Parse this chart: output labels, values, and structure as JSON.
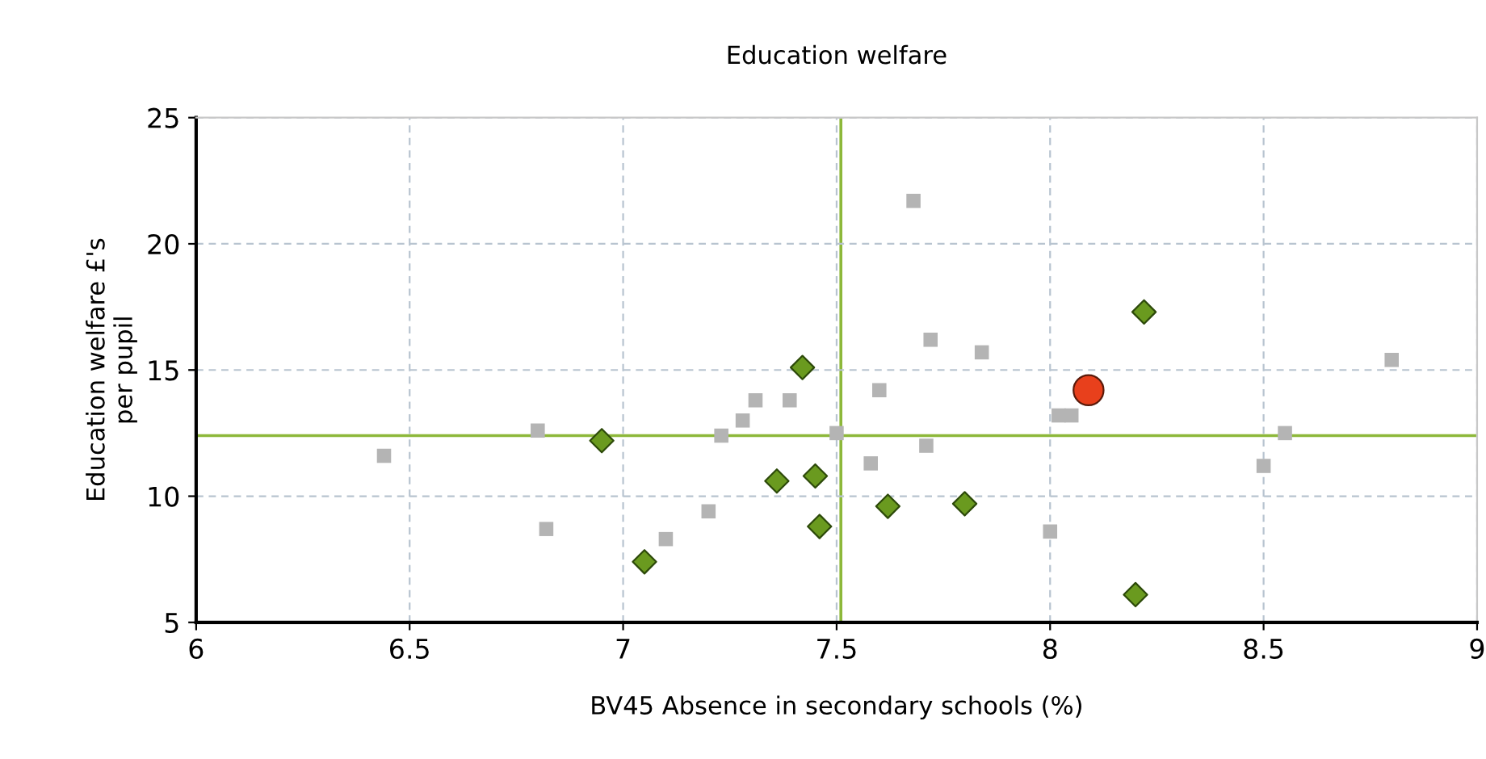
{
  "chart_data": {
    "type": "scatter",
    "title": "Education welfare",
    "xlabel": "BV45 Absence in secondary schools (%)",
    "ylabel": "Education welfare £'s\nper pupil",
    "xlim": [
      6,
      9
    ],
    "xticks": [
      6,
      6.5,
      7,
      7.5,
      8,
      8.5,
      9
    ],
    "ylim": [
      5,
      25
    ],
    "yticks": [
      5,
      10,
      15,
      20,
      25
    ],
    "grid": true,
    "series": [
      {
        "color": "#b4b4b4",
        "marker": "square",
        "x": [
          6.44,
          6.8,
          6.82,
          7.1,
          7.2,
          7.23,
          7.28,
          7.31,
          7.39,
          7.45,
          7.5,
          7.68,
          7.72,
          7.84,
          7.6,
          7.71,
          7.58,
          8.0,
          8.02,
          8.05,
          8.55,
          8.5,
          8.8
        ],
        "values": [
          11.6,
          12.6,
          8.7,
          8.3,
          9.4,
          12.4,
          13.0,
          13.8,
          13.8,
          null,
          12.5,
          21.7,
          16.2,
          15.7,
          14.2,
          12.0,
          11.3,
          8.6,
          13.2,
          13.2,
          12.5,
          11.2,
          15.4
        ]
      },
      {
        "color": "#6a9a1f",
        "marker": "diamond",
        "x": [
          8.22,
          8.2,
          7.8,
          7.62,
          7.42,
          6.95,
          7.36,
          7.45,
          7.46,
          7.05
        ],
        "values": [
          17.3,
          6.1,
          9.7,
          9.6,
          15.1,
          12.2,
          10.6,
          10.8,
          8.8,
          7.4
        ]
      },
      {
        "color": "#e8401c",
        "marker": "circle",
        "x": [
          8.09
        ],
        "values": [
          14.2
        ]
      }
    ],
    "ref_lines": [
      {
        "axis": "x",
        "value": 7.51,
        "color": "#8db83a"
      },
      {
        "axis": "y",
        "value": 12.4,
        "color": "#8db83a"
      }
    ]
  }
}
